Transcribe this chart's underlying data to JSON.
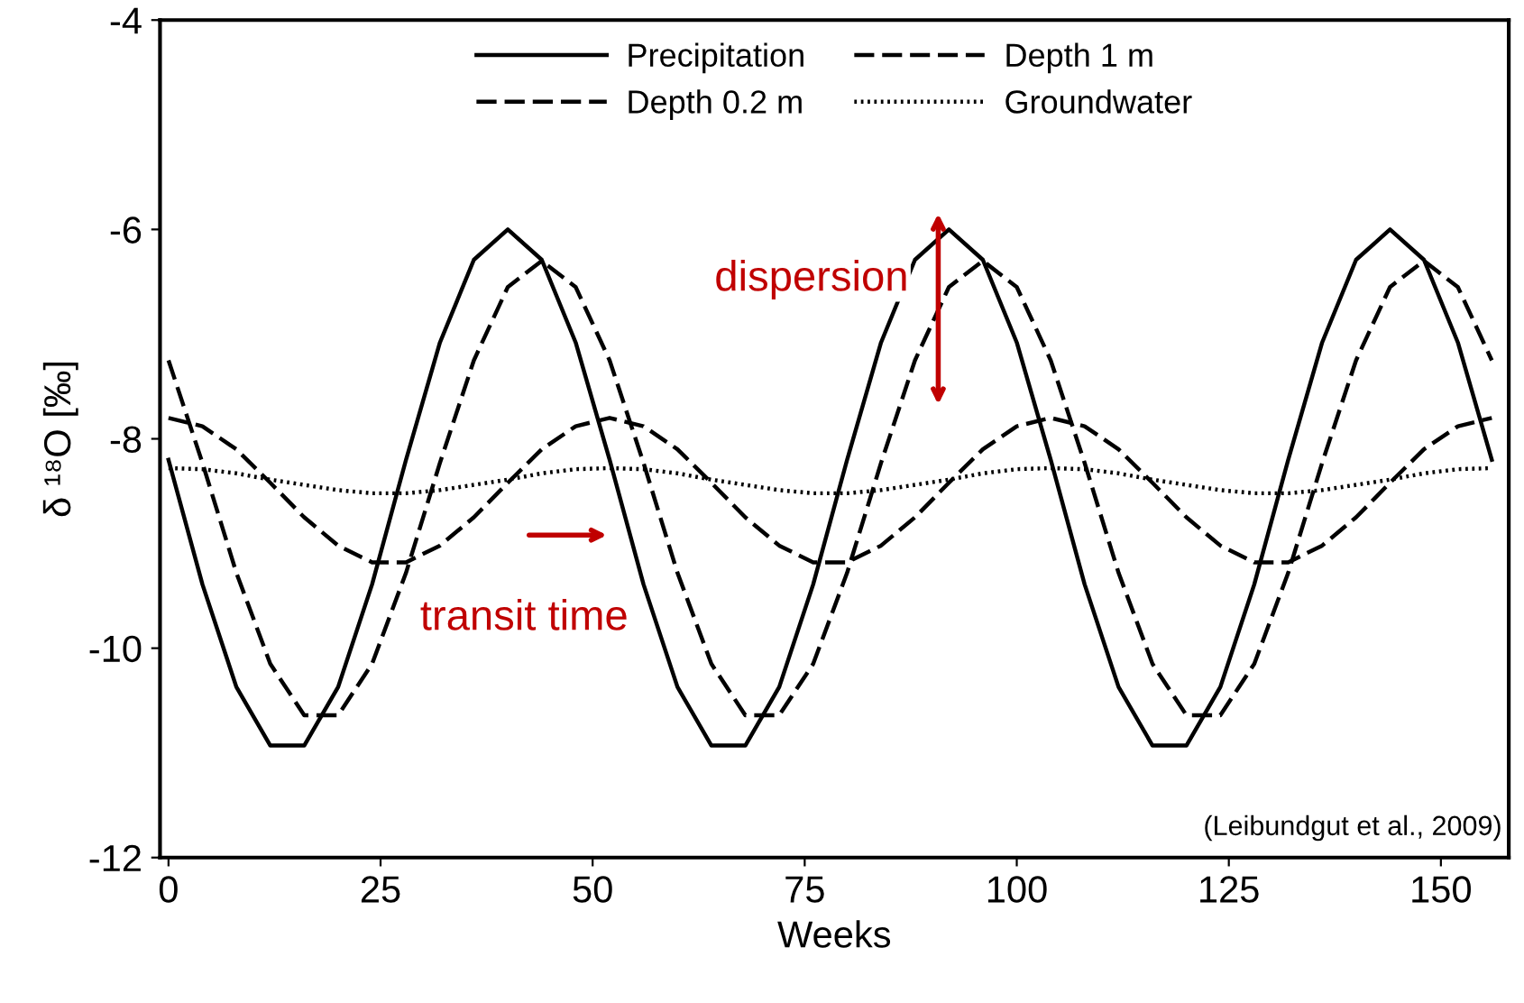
{
  "chart_data": {
    "type": "line",
    "xlabel": "Weeks",
    "ylabel": "δ ¹⁸O [‰]",
    "x": [
      0,
      4,
      8,
      12,
      16,
      20,
      24,
      28,
      32,
      36,
      40,
      44,
      48,
      52,
      56,
      60,
      64,
      68,
      72,
      76,
      80,
      84,
      88,
      92,
      96,
      100,
      104,
      108,
      112,
      116,
      120,
      124,
      128,
      132,
      136,
      140,
      144,
      148,
      152,
      156
    ],
    "series": [
      {
        "name": "Precipitation",
        "color": "#000000",
        "line_style": "solid",
        "values": [
          -8.2,
          -9.39,
          -10.37,
          -10.93,
          -10.93,
          -10.37,
          -9.39,
          -8.2,
          -7.08,
          -6.29,
          -6.0,
          -6.29,
          -7.08,
          -8.2,
          -9.39,
          -10.37,
          -10.93,
          -10.93,
          -10.37,
          -9.39,
          -8.2,
          -7.08,
          -6.29,
          -6.0,
          -6.29,
          -7.08,
          -8.2,
          -9.39,
          -10.37,
          -10.93,
          -10.93,
          -10.37,
          -9.39,
          -8.2,
          -7.08,
          -6.29,
          -6.0,
          -6.29,
          -7.08,
          -8.2
        ]
      },
      {
        "name": "Depth 1 m",
        "color": "#000000",
        "line_style": "dashed",
        "values": [
          -7.8,
          -7.88,
          -8.1,
          -8.42,
          -8.75,
          -9.02,
          -9.18,
          -9.18,
          -9.02,
          -8.75,
          -8.42,
          -8.1,
          -7.88,
          -7.8,
          -7.88,
          -8.1,
          -8.42,
          -8.75,
          -9.02,
          -9.18,
          -9.18,
          -9.02,
          -8.75,
          -8.42,
          -8.1,
          -7.88,
          -7.8,
          -7.88,
          -8.1,
          -8.42,
          -8.75,
          -9.02,
          -9.18,
          -9.18,
          -9.02,
          -8.75,
          -8.42,
          -8.1,
          -7.88,
          -7.8
        ]
      },
      {
        "name": "Depth 0.2 m",
        "color": "#000000",
        "line_style": "dashed",
        "values": [
          -7.25,
          -8.23,
          -9.28,
          -10.15,
          -10.64,
          -10.64,
          -10.15,
          -9.28,
          -8.23,
          -7.25,
          -6.55,
          -6.3,
          -6.55,
          -7.25,
          -8.23,
          -9.28,
          -10.15,
          -10.64,
          -10.64,
          -10.15,
          -9.28,
          -8.23,
          -7.25,
          -6.55,
          -6.3,
          -6.55,
          -7.25,
          -8.23,
          -9.28,
          -10.15,
          -10.64,
          -10.64,
          -10.15,
          -9.28,
          -8.23,
          -7.25,
          -6.55,
          -6.3,
          -6.55,
          -7.25
        ]
      },
      {
        "name": "Groundwater",
        "color": "#000000",
        "line_style": "dotted",
        "values": [
          -8.28,
          -8.29,
          -8.33,
          -8.39,
          -8.44,
          -8.49,
          -8.52,
          -8.52,
          -8.49,
          -8.44,
          -8.39,
          -8.33,
          -8.29,
          -8.28,
          -8.29,
          -8.33,
          -8.39,
          -8.44,
          -8.49,
          -8.52,
          -8.52,
          -8.49,
          -8.44,
          -8.39,
          -8.33,
          -8.29,
          -8.28,
          -8.29,
          -8.33,
          -8.39,
          -8.44,
          -8.49,
          -8.52,
          -8.52,
          -8.49,
          -8.44,
          -8.39,
          -8.33,
          -8.29,
          -8.28
        ]
      }
    ],
    "xlim": [
      -1,
      158
    ],
    "xticks": [
      0,
      25,
      50,
      75,
      100,
      125,
      150
    ],
    "ylim": [
      -12,
      -4
    ],
    "yticks": [
      -12,
      -10,
      -8,
      -6,
      -4
    ],
    "grid": false,
    "legend": "top",
    "marker": "none",
    "annotations": [
      "dispersion",
      "transit time",
      "(Leibundgut et al., 2009)"
    ]
  }
}
